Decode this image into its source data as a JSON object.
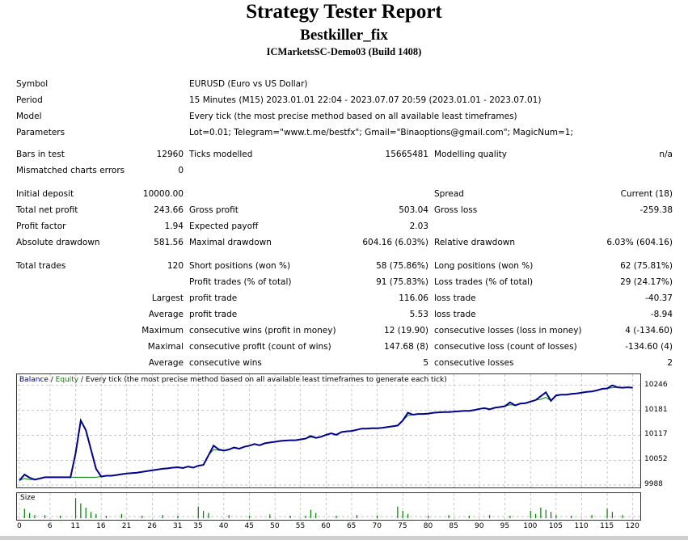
{
  "report": {
    "title": "Strategy Tester Report",
    "expert": "Bestkiller_fix",
    "server": "ICMarketsSC-Demo03 (Build 1408)"
  },
  "info": {
    "symbol_label": "Symbol",
    "symbol_value": "EURUSD (Euro vs US Dollar)",
    "period_label": "Period",
    "period_value": "15 Minutes (M15) 2023.01.01 22:04 - 2023.07.07 20:59 (2023.01.01 - 2023.07.01)",
    "model_label": "Model",
    "model_value": "Every tick (the most precise method based on all available least timeframes)",
    "params_label": "Parameters",
    "params_value": "Lot=0.01; Telegram=\"www.t.me/bestfx\"; Gmail=\"Binaoptions@gmail.com\"; MagicNum=1;"
  },
  "bars": {
    "bars_label": "Bars in test",
    "bars_value": "12960",
    "ticks_label": "Ticks modelled",
    "ticks_value": "15665481",
    "quality_label": "Modelling quality",
    "quality_value": "n/a",
    "mismatch_label": "Mismatched charts errors",
    "mismatch_value": "0"
  },
  "results": {
    "initial_deposit_label": "Initial deposit",
    "initial_deposit_value": "10000.00",
    "spread_label": "Spread",
    "spread_value": "Current (18)",
    "net_profit_label": "Total net profit",
    "net_profit_value": "243.66",
    "gross_profit_label": "Gross profit",
    "gross_profit_value": "503.04",
    "gross_loss_label": "Gross loss",
    "gross_loss_value": "-259.38",
    "profit_factor_label": "Profit factor",
    "profit_factor_value": "1.94",
    "expected_payoff_label": "Expected payoff",
    "expected_payoff_value": "2.03",
    "abs_dd_label": "Absolute drawdown",
    "abs_dd_value": "581.56",
    "max_dd_label": "Maximal drawdown",
    "max_dd_value": "604.16 (6.03%)",
    "rel_dd_label": "Relative drawdown",
    "rel_dd_value": "6.03% (604.16)"
  },
  "trades": {
    "total_label": "Total trades",
    "total_value": "120",
    "short_label": "Short positions (won %)",
    "short_value": "58 (75.86%)",
    "long_label": "Long positions (won %)",
    "long_value": "62 (75.81%)",
    "profit_trades_label": "Profit trades (% of total)",
    "profit_trades_value": "91 (75.83%)",
    "loss_trades_label": "Loss trades (% of total)",
    "loss_trades_value": "29 (24.17%)",
    "largest_label": "Largest",
    "largest_profit_label": "profit trade",
    "largest_profit_value": "116.06",
    "largest_loss_label": "loss trade",
    "largest_loss_value": "-40.37",
    "average_label": "Average",
    "avg_profit_label": "profit trade",
    "avg_profit_value": "5.53",
    "avg_loss_label": "loss trade",
    "avg_loss_value": "-8.94",
    "maximum_label": "Maximum",
    "max_cons_wins_label": "consecutive wins (profit in money)",
    "max_cons_wins_value": "12 (19.90)",
    "max_cons_losses_label": "consecutive losses (loss in money)",
    "max_cons_losses_value": "4 (-134.60)",
    "maximal_label": "Maximal",
    "maximal_profit_label": "consecutive profit (count of wins)",
    "maximal_profit_value": "147.68 (8)",
    "maximal_loss_label": "consecutive loss (count of losses)",
    "maximal_loss_value": "-134.60 (4)",
    "average2_label": "Average",
    "avg_cons_wins_label": "consecutive wins",
    "avg_cons_wins_value": "5",
    "avg_cons_losses_label": "consecutive losses",
    "avg_cons_losses_value": "2"
  },
  "chart_labels": {
    "balance": "Balance",
    "sep1": " / ",
    "equity": "Equity",
    "sep2": " / ",
    "desc": "Every tick (the most precise method based on all available least timeframes to generate each tick)",
    "size": "Size"
  },
  "chart_data": {
    "type": "line",
    "ylim": [
      9988,
      10260
    ],
    "xlim": [
      0,
      121
    ],
    "ytick_labels": [
      "10246",
      "10181",
      "10117",
      "10052",
      "9988"
    ],
    "ytick_values": [
      10246,
      10181,
      10117,
      10052,
      9988
    ],
    "xtick_labels": [
      "0",
      "6",
      "11",
      "16",
      "21",
      "26",
      "31",
      "35",
      "40",
      "45",
      "50",
      "55",
      "60",
      "65",
      "70",
      "75",
      "80",
      "85",
      "90",
      "95",
      "100",
      "105",
      "110",
      "115",
      "120"
    ],
    "xtick_values": [
      0,
      6,
      11,
      16,
      21,
      26,
      31,
      35,
      40,
      45,
      50,
      55,
      60,
      65,
      70,
      75,
      80,
      85,
      90,
      95,
      100,
      105,
      110,
      115,
      120
    ],
    "colors": {
      "balance": "#00008b",
      "equity": "#008000",
      "grid": "#b0b0b0",
      "size_bar": "#008000"
    },
    "series": [
      {
        "name": "Balance",
        "x": [
          0,
          1,
          2,
          3,
          4,
          5,
          6,
          7,
          8,
          9,
          10,
          11,
          12,
          13,
          14,
          15,
          16,
          17,
          18,
          19,
          20,
          21,
          22,
          23,
          24,
          25,
          26,
          27,
          28,
          29,
          30,
          31,
          32,
          33,
          34,
          35,
          36,
          37,
          38,
          39,
          40,
          41,
          42,
          43,
          44,
          45,
          46,
          47,
          48,
          49,
          50,
          51,
          52,
          53,
          54,
          55,
          56,
          57,
          58,
          59,
          60,
          61,
          62,
          63,
          64,
          65,
          66,
          67,
          68,
          69,
          70,
          71,
          72,
          73,
          74,
          75,
          76,
          77,
          78,
          79,
          80,
          81,
          82,
          83,
          84,
          85,
          86,
          87,
          88,
          89,
          90,
          91,
          92,
          93,
          94,
          95,
          96,
          97,
          98,
          99,
          100,
          101,
          102,
          103,
          104,
          105,
          106,
          107,
          108,
          109,
          110,
          111,
          112,
          113,
          114,
          115,
          116,
          117,
          118,
          119,
          120
        ],
        "y": [
          10000,
          10015,
          10007,
          10002,
          10005,
          10008,
          10008,
          10008,
          10008,
          10008,
          10008,
          10070,
          10155,
          10130,
          10080,
          10030,
          10010,
          10012,
          10012,
          10014,
          10016,
          10018,
          10019,
          10020,
          10022,
          10024,
          10026,
          10028,
          10030,
          10031,
          10033,
          10034,
          10032,
          10036,
          10033,
          10038,
          10040,
          10065,
          10090,
          10080,
          10077,
          10080,
          10085,
          10082,
          10087,
          10090,
          10094,
          10091,
          10096,
          10098,
          10100,
          10102,
          10103,
          10104,
          10104,
          10106,
          10108,
          10115,
          10110,
          10113,
          10118,
          10122,
          10118,
          10125,
          10127,
          10128,
          10131,
          10134,
          10134,
          10135,
          10135,
          10136,
          10138,
          10140,
          10142,
          10155,
          10175,
          10170,
          10172,
          10172,
          10173,
          10175,
          10176,
          10177,
          10177,
          10178,
          10179,
          10180,
          10180,
          10182,
          10185,
          10187,
          10184,
          10188,
          10190,
          10192,
          10202,
          10194,
          10199,
          10200,
          10204,
          10208,
          10218,
          10228,
          10206,
          10220,
          10222,
          10222,
          10224,
          10225,
          10227,
          10229,
          10230,
          10233,
          10237,
          10238,
          10246,
          10241,
          10240,
          10241,
          10240
        ]
      },
      {
        "name": "Equity",
        "x": [
          0,
          1,
          2,
          3,
          4,
          5,
          6,
          7,
          8,
          9,
          10,
          11,
          12,
          13,
          14,
          15,
          16,
          17,
          18,
          19,
          20,
          21,
          22,
          23,
          24,
          25,
          26,
          27,
          28,
          29,
          30,
          31,
          32,
          33,
          34,
          35,
          36,
          37,
          38,
          39,
          40,
          41,
          42,
          43,
          44,
          45,
          46,
          47,
          48,
          49,
          50,
          51,
          52,
          53,
          54,
          55,
          56,
          57,
          58,
          59,
          60,
          61,
          62,
          63,
          64,
          65,
          66,
          67,
          68,
          69,
          70,
          71,
          72,
          73,
          74,
          75,
          76,
          77,
          78,
          79,
          80,
          81,
          82,
          83,
          84,
          85,
          86,
          87,
          88,
          89,
          90,
          91,
          92,
          93,
          94,
          95,
          96,
          97,
          98,
          99,
          100,
          101,
          102,
          103,
          104,
          105,
          106,
          107,
          108,
          109,
          110,
          111,
          112,
          113,
          114,
          115,
          116,
          117,
          118,
          119,
          120
        ],
        "y": [
          10000,
          10005,
          10002,
          10002,
          10005,
          10008,
          10008,
          10008,
          10008,
          10008,
          10008,
          10008,
          10008,
          10008,
          10008,
          10008,
          10010,
          10012,
          10012,
          10014,
          10016,
          10018,
          10019,
          10020,
          10022,
          10024,
          10026,
          10028,
          10030,
          10031,
          10033,
          10034,
          10032,
          10036,
          10033,
          10038,
          10040,
          10065,
          10080,
          10078,
          10077,
          10080,
          10085,
          10082,
          10087,
          10090,
          10094,
          10091,
          10096,
          10098,
          10100,
          10102,
          10103,
          10104,
          10104,
          10106,
          10108,
          10112,
          10110,
          10113,
          10118,
          10122,
          10118,
          10125,
          10127,
          10128,
          10131,
          10134,
          10134,
          10135,
          10135,
          10136,
          10138,
          10140,
          10142,
          10155,
          10168,
          10170,
          10172,
          10172,
          10173,
          10175,
          10176,
          10177,
          10177,
          10178,
          10179,
          10180,
          10180,
          10182,
          10185,
          10187,
          10184,
          10188,
          10190,
          10192,
          10196,
          10194,
          10199,
          10200,
          10204,
          10208,
          10210,
          10215,
          10206,
          10218,
          10222,
          10222,
          10224,
          10225,
          10227,
          10229,
          10230,
          10233,
          10237,
          10238,
          10240,
          10241,
          10240,
          10241,
          10240
        ]
      }
    ],
    "size_bars": [
      {
        "x": 1,
        "h": 0.45
      },
      {
        "x": 2,
        "h": 0.25
      },
      {
        "x": 3,
        "h": 0.15
      },
      {
        "x": 5,
        "h": 0.15
      },
      {
        "x": 8,
        "h": 0.12
      },
      {
        "x": 11,
        "h": 0.95
      },
      {
        "x": 12,
        "h": 0.7
      },
      {
        "x": 13,
        "h": 0.5
      },
      {
        "x": 14,
        "h": 0.3
      },
      {
        "x": 15,
        "h": 0.2
      },
      {
        "x": 17,
        "h": 0.12
      },
      {
        "x": 20,
        "h": 0.2
      },
      {
        "x": 24,
        "h": 0.12
      },
      {
        "x": 28,
        "h": 0.15
      },
      {
        "x": 31,
        "h": 0.12
      },
      {
        "x": 35,
        "h": 0.55
      },
      {
        "x": 36,
        "h": 0.35
      },
      {
        "x": 37,
        "h": 0.25
      },
      {
        "x": 41,
        "h": 0.15
      },
      {
        "x": 45,
        "h": 0.12
      },
      {
        "x": 49,
        "h": 0.18
      },
      {
        "x": 53,
        "h": 0.12
      },
      {
        "x": 56,
        "h": 0.12
      },
      {
        "x": 57,
        "h": 0.4
      },
      {
        "x": 58,
        "h": 0.25
      },
      {
        "x": 62,
        "h": 0.12
      },
      {
        "x": 66,
        "h": 0.15
      },
      {
        "x": 70,
        "h": 0.12
      },
      {
        "x": 74,
        "h": 0.55
      },
      {
        "x": 75,
        "h": 0.35
      },
      {
        "x": 76,
        "h": 0.2
      },
      {
        "x": 80,
        "h": 0.12
      },
      {
        "x": 84,
        "h": 0.15
      },
      {
        "x": 88,
        "h": 0.12
      },
      {
        "x": 92,
        "h": 0.15
      },
      {
        "x": 96,
        "h": 0.12
      },
      {
        "x": 100,
        "h": 0.35
      },
      {
        "x": 101,
        "h": 0.2
      },
      {
        "x": 102,
        "h": 0.5
      },
      {
        "x": 103,
        "h": 0.4
      },
      {
        "x": 104,
        "h": 0.3
      },
      {
        "x": 105,
        "h": 0.15
      },
      {
        "x": 108,
        "h": 0.12
      },
      {
        "x": 112,
        "h": 0.15
      },
      {
        "x": 115,
        "h": 0.45
      },
      {
        "x": 116,
        "h": 0.3
      },
      {
        "x": 118,
        "h": 0.15
      }
    ]
  }
}
